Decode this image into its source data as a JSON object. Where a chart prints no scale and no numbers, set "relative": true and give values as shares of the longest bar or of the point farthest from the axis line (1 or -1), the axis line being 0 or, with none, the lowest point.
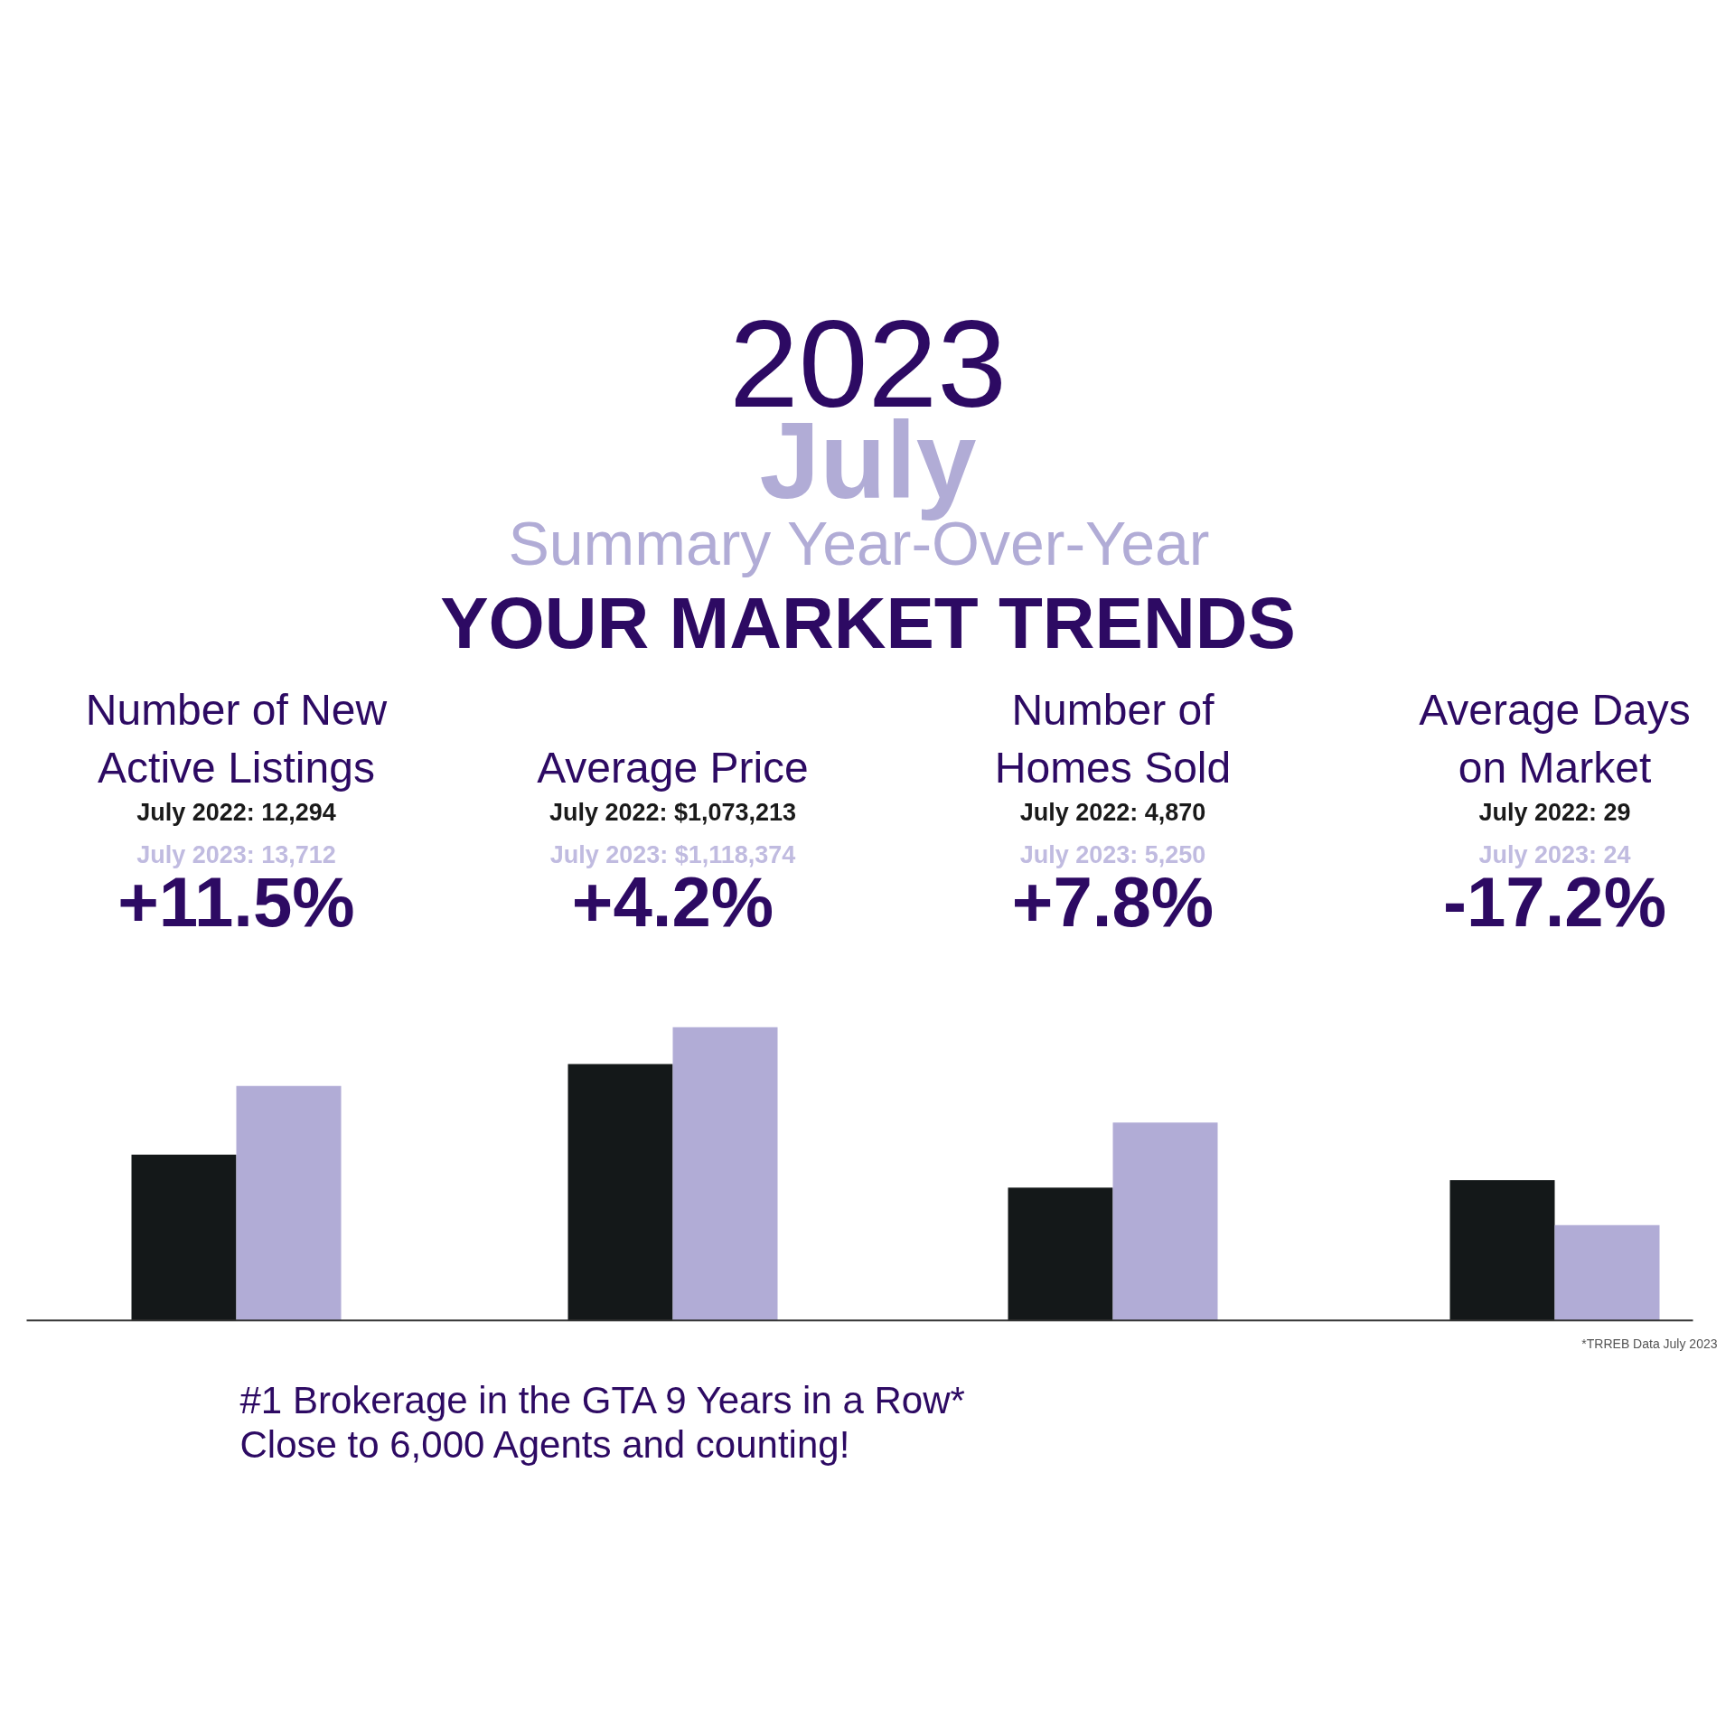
{
  "chart_data": {
    "type": "bar",
    "relative": true,
    "title": "2023",
    "subtitle": "July",
    "categories": [
      "Number of New\nActive Listings",
      "Average Price",
      "Number of\nHomes Sold",
      "Average Days\non Market"
    ],
    "series": [
      {
        "color": "#141819",
        "values": [
          0.566,
          0.875,
          0.453,
          0.479
        ]
      },
      {
        "color": "#b1acd6",
        "values": [
          0.8,
          1.0,
          0.675,
          0.325
        ]
      }
    ],
    "annotations": [
      "Summary  Year-Over-Year",
      "YOUR MARKET TRENDS",
      "*TRREB Data July 2023",
      "#1 Brokerage in the GTA 9 Years in a Row*",
      "Close to 6,000 Agents and counting!",
      "July 2022: 12,294",
      "July 2023: 13,712",
      "+11.5%",
      "July 2022: $1,073,213",
      "July 2023: $1,118,374",
      "+4.2%",
      "July 2022: 4,870",
      "July 2023: 5,250",
      "+7.8%",
      "July 2022: 29",
      "July 2023: 24",
      "-17.2%"
    ]
  }
}
